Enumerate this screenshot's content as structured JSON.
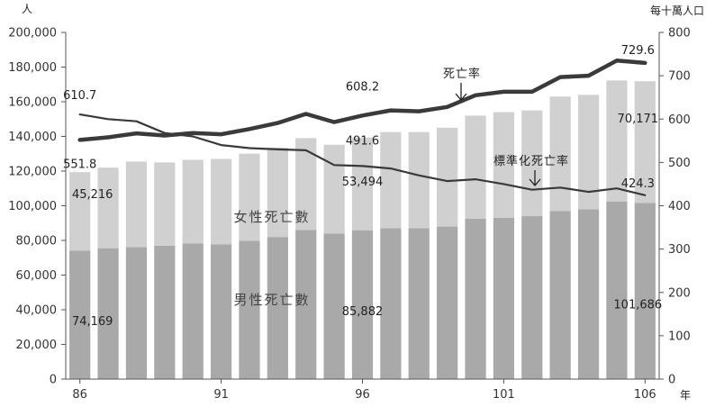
{
  "chart_data": {
    "type": "bar",
    "x": [
      86,
      87,
      88,
      89,
      90,
      91,
      92,
      93,
      94,
      95,
      96,
      97,
      98,
      99,
      100,
      101,
      102,
      103,
      104,
      105,
      106
    ],
    "x_tick_labels": [
      "86",
      "91",
      "96",
      "101",
      "106"
    ],
    "x_tick_values": [
      86,
      91,
      96,
      101,
      106
    ],
    "left_axis_unit": "人",
    "right_axis_unit": "每十萬人口",
    "x_axis_unit": "年",
    "left_ylim": [
      0,
      200000
    ],
    "right_ylim": [
      0,
      800
    ],
    "left_ticks": [
      "0",
      "20,000",
      "40,000",
      "60,000",
      "80,000",
      "100,000",
      "120,000",
      "140,000",
      "160,000",
      "180,000",
      "200,000"
    ],
    "right_ticks": [
      "0",
      "100",
      "200",
      "300",
      "400",
      "500",
      "600",
      "700",
      "800"
    ],
    "grid": false,
    "bar_series": [
      {
        "name": "男性死亡數",
        "color": "#a9a9a9",
        "values": [
          74169,
          75500,
          76200,
          77000,
          78200,
          77800,
          79800,
          82000,
          86000,
          84000,
          85882,
          87000,
          87000,
          88000,
          92500,
          93000,
          94000,
          97000,
          98000,
          102500,
          101686
        ]
      },
      {
        "name": "女性死亡數",
        "color": "#d0d0d0",
        "values": [
          45216,
          46500,
          49300,
          48000,
          48300,
          49200,
          50200,
          51500,
          53000,
          51200,
          53494,
          55500,
          55500,
          57000,
          59500,
          61000,
          61000,
          66000,
          66000,
          69800,
          70171
        ]
      }
    ],
    "line_series": [
      {
        "name": "死亡率",
        "color": "#3a3a3a",
        "values": [
          551.8,
          558,
          567,
          562,
          568,
          565,
          577,
          591,
          612,
          593,
          608.2,
          620,
          618,
          628,
          655,
          663,
          663,
          697,
          700,
          735,
          729.6
        ]
      },
      {
        "name": "標準化死亡率",
        "color": "#3a3a3a",
        "values": [
          610.7,
          600,
          595,
          568,
          560,
          540,
          533,
          530,
          528,
          494,
          491.6,
          486,
          470,
          457,
          461,
          450,
          437,
          442,
          432,
          440,
          424.3
        ]
      }
    ],
    "data_labels": [
      {
        "text": "610.7"
      },
      {
        "text": "551.8"
      },
      {
        "text": "608.2"
      },
      {
        "text": "491.6"
      },
      {
        "text": "729.6"
      },
      {
        "text": "424.3"
      },
      {
        "text": "45,216"
      },
      {
        "text": "74,169"
      },
      {
        "text": "53,494"
      },
      {
        "text": "85,882"
      },
      {
        "text": "70,171"
      },
      {
        "text": "101,686"
      }
    ],
    "series_labels": {
      "female": "女性死亡數",
      "male": "男性死亡數",
      "crude_rate": "死亡率",
      "standardized_rate": "標準化死亡率"
    }
  }
}
